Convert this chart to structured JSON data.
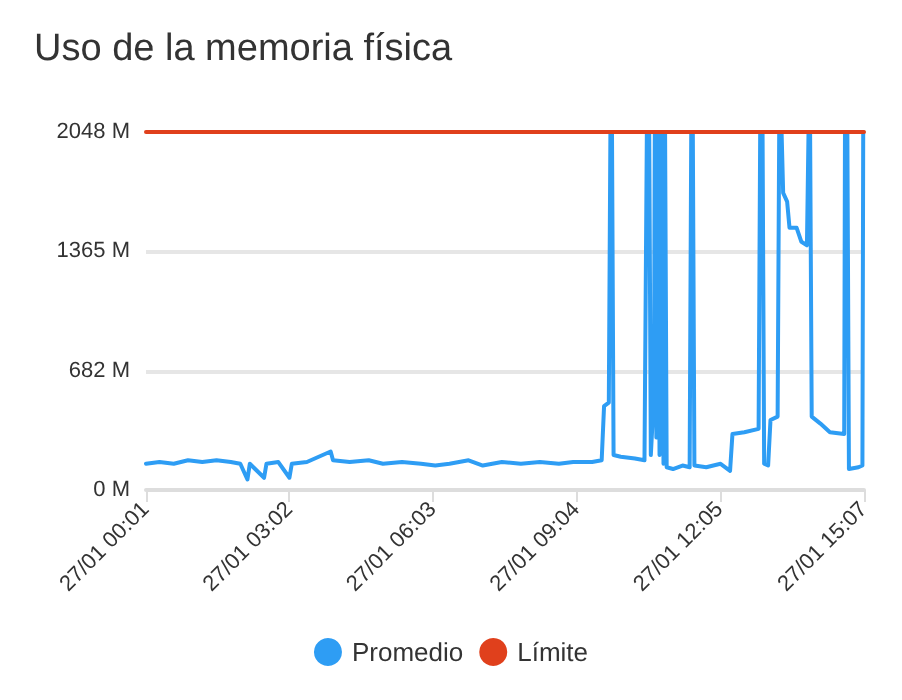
{
  "chart_data": {
    "type": "line",
    "title": "Uso de la memoria física",
    "xlim": [
      "--01-27T00:01",
      "--01-27T15:07"
    ],
    "xticks": [
      {
        "value": "--01-27T00:01",
        "label": "27/01 00:01"
      },
      {
        "value": "--01-27T03:02",
        "label": "27/01 03:02"
      },
      {
        "value": "--01-27T06:03",
        "label": "27/01 06:03"
      },
      {
        "value": "--01-27T09:04",
        "label": "27/01 09:04"
      },
      {
        "value": "--01-27T12:05",
        "label": "27/01 12:05"
      },
      {
        "value": "--01-27T15:07",
        "label": "27/01 15:07"
      }
    ],
    "ylim": [
      0,
      2048
    ],
    "yticks": [
      {
        "value": 0,
        "label": "0 M"
      },
      {
        "value": 682,
        "label": "682 M"
      },
      {
        "value": 1365,
        "label": "1365 M"
      },
      {
        "value": 2048,
        "label": "2048 M"
      }
    ],
    "grid": "y",
    "legend": "bottom",
    "marker": "none",
    "line_style": "solid",
    "series": [
      {
        "name": "Promedio",
        "color": "#2e9df4",
        "x": [
          "--01-27T00:01",
          "--01-27T00:18",
          "--01-27T00:36",
          "--01-27T00:54",
          "--01-27T01:12",
          "--01-27T01:30",
          "--01-27T01:48",
          "--01-27T02:00",
          "--01-27T02:09",
          "--01-27T02:12",
          "--01-27T02:30",
          "--01-27T02:33",
          "--01-27T02:48",
          "--01-27T03:02",
          "--01-27T03:05",
          "--01-27T03:24",
          "--01-27T03:54",
          "--01-27T03:57",
          "--01-27T04:18",
          "--01-27T04:42",
          "--01-27T05:00",
          "--01-27T05:24",
          "--01-27T05:48",
          "--01-27T06:06",
          "--01-27T06:24",
          "--01-27T06:48",
          "--01-27T07:06",
          "--01-27T07:30",
          "--01-27T07:54",
          "--01-27T08:18",
          "--01-27T08:42",
          "--01-27T09:00",
          "--01-27T09:24",
          "--01-27T09:36",
          "--01-27T09:39",
          "--01-27T09:45",
          "--01-27T09:47",
          "--01-27T09:49",
          "--01-27T09:51",
          "--01-27T10:00",
          "--01-27T10:18",
          "--01-27T10:30",
          "--01-27T10:33",
          "--01-27T10:36",
          "--01-27T10:38",
          "--01-27T10:42",
          "--01-27T10:43",
          "--01-27T10:45",
          "--01-27T10:47",
          "--01-27T10:49",
          "--01-27T10:51",
          "--01-27T10:54",
          "--01-27T10:56",
          "--01-27T10:58",
          "--01-27T11:06",
          "--01-27T11:18",
          "--01-27T11:27",
          "--01-27T11:29",
          "--01-27T11:31",
          "--01-27T11:33",
          "--01-27T11:48",
          "--01-27T12:06",
          "--01-27T12:18",
          "--01-27T12:21",
          "--01-27T12:36",
          "--01-27T12:54",
          "--01-27T12:56",
          "--01-27T12:59",
          "--01-27T13:01",
          "--01-27T13:06",
          "--01-27T13:09",
          "--01-27T13:18",
          "--01-27T13:20",
          "--01-27T13:23",
          "--01-27T13:25",
          "--01-27T13:30",
          "--01-27T13:33",
          "--01-27T13:42",
          "--01-27T13:48",
          "--01-27T13:55",
          "--01-27T13:57",
          "--01-27T13:59",
          "--01-27T14:01",
          "--01-27T14:12",
          "--01-27T14:24",
          "--01-27T14:42",
          "--01-27T14:43",
          "--01-27T14:46",
          "--01-27T14:48",
          "--01-27T15:00",
          "--01-27T15:05",
          "--01-27T15:06",
          "--01-27T15:07"
        ],
        "values": [
          150,
          160,
          150,
          170,
          160,
          170,
          160,
          150,
          60,
          150,
          70,
          150,
          160,
          70,
          150,
          160,
          220,
          170,
          160,
          170,
          150,
          160,
          150,
          140,
          150,
          170,
          140,
          160,
          150,
          160,
          150,
          160,
          160,
          170,
          480,
          500,
          2048,
          2048,
          200,
          190,
          180,
          170,
          2048,
          2048,
          200,
          550,
          2048,
          300,
          2048,
          200,
          2048,
          150,
          2048,
          130,
          120,
          140,
          130,
          2048,
          2048,
          140,
          130,
          150,
          110,
          320,
          330,
          350,
          2048,
          2048,
          150,
          140,
          400,
          420,
          2048,
          2048,
          1700,
          1650,
          1500,
          1500,
          1420,
          1400,
          2048,
          2048,
          420,
          380,
          330,
          320,
          2048,
          2048,
          120,
          130,
          140,
          2048,
          2048
        ]
      },
      {
        "name": "Límite",
        "color": "#e0401c",
        "x": [
          "--01-27T00:01",
          "--01-27T15:07"
        ],
        "values": [
          2048,
          2048
        ]
      }
    ]
  }
}
